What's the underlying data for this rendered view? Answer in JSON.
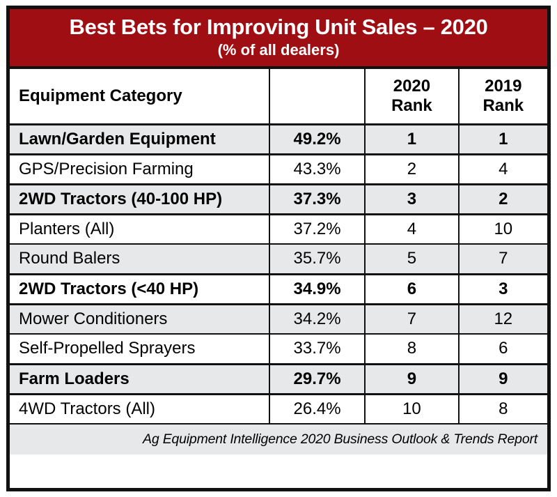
{
  "header": {
    "title": "Best Bets for Improving Unit Sales – 2020",
    "subtitle": "(% of all dealers)"
  },
  "table": {
    "header": {
      "category_label": "Equipment Category",
      "pct_label": "",
      "rank2020_line1": "2020",
      "rank2020_line2": "Rank",
      "rank2019_line1": "2019",
      "rank2019_line2": "Rank"
    },
    "rows": [
      {
        "category": "Lawn/Garden Equipment",
        "pct": "49.2%",
        "rank_2020": "1",
        "rank_2019": "1",
        "bold": true
      },
      {
        "category": "GPS/Precision Farming",
        "pct": "43.3%",
        "rank_2020": "2",
        "rank_2019": "4",
        "bold": false
      },
      {
        "category": "2WD Tractors (40-100 HP)",
        "pct": "37.3%",
        "rank_2020": "3",
        "rank_2019": "2",
        "bold": true
      },
      {
        "category": "Planters (All)",
        "pct": "37.2%",
        "rank_2020": "4",
        "rank_2019": "10",
        "bold": false
      },
      {
        "category": "Round Balers",
        "pct": "35.7%",
        "rank_2020": "5",
        "rank_2019": "7",
        "bold": false
      },
      {
        "category": "2WD Tractors (<40 HP)",
        "pct": "34.9%",
        "rank_2020": "6",
        "rank_2019": "3",
        "bold": true
      },
      {
        "category": "Mower Conditioners",
        "pct": "34.2%",
        "rank_2020": "7",
        "rank_2019": "12",
        "bold": false
      },
      {
        "category": "Self-Propelled Sprayers",
        "pct": "33.7%",
        "rank_2020": "8",
        "rank_2019": "6",
        "bold": false
      },
      {
        "category": "Farm Loaders",
        "pct": "29.7%",
        "rank_2020": "9",
        "rank_2019": "9",
        "bold": true
      },
      {
        "category": "4WD Tractors (All)",
        "pct": "26.4%",
        "rank_2020": "10",
        "rank_2019": "8",
        "bold": false
      }
    ]
  },
  "footer": {
    "source": "Ag Equipment Intelligence 2020 Business Outlook & Trends Report"
  },
  "colors": {
    "header_red": "#9E0E13",
    "row_gray": "#E7E8E9",
    "border_black": "#111111",
    "header_text": "#FFFFFF",
    "body_text": "#000000"
  },
  "chart_data": {
    "type": "table",
    "title": "Best Bets for Improving Unit Sales – 2020",
    "subtitle": "(% of all dealers)",
    "columns": [
      "Equipment Category",
      "% of all dealers",
      "2020 Rank",
      "2019 Rank"
    ],
    "rows": [
      [
        "Lawn/Garden Equipment",
        49.2,
        1,
        1
      ],
      [
        "GPS/Precision Farming",
        43.3,
        2,
        4
      ],
      [
        "2WD Tractors (40-100 HP)",
        37.3,
        3,
        2
      ],
      [
        "Planters (All)",
        37.2,
        4,
        10
      ],
      [
        "Round Balers",
        35.7,
        5,
        7
      ],
      [
        "2WD Tractors (<40 HP)",
        34.9,
        6,
        3
      ],
      [
        "Mower Conditioners",
        34.2,
        7,
        12
      ],
      [
        "Self-Propelled Sprayers",
        33.7,
        8,
        6
      ],
      [
        "Farm Loaders",
        29.7,
        9,
        9
      ],
      [
        "4WD Tractors (All)",
        26.4,
        10,
        8
      ]
    ],
    "highlighted_rows": [
      0,
      2,
      5,
      8
    ],
    "source": "Ag Equipment Intelligence 2020 Business Outlook & Trends Report"
  }
}
